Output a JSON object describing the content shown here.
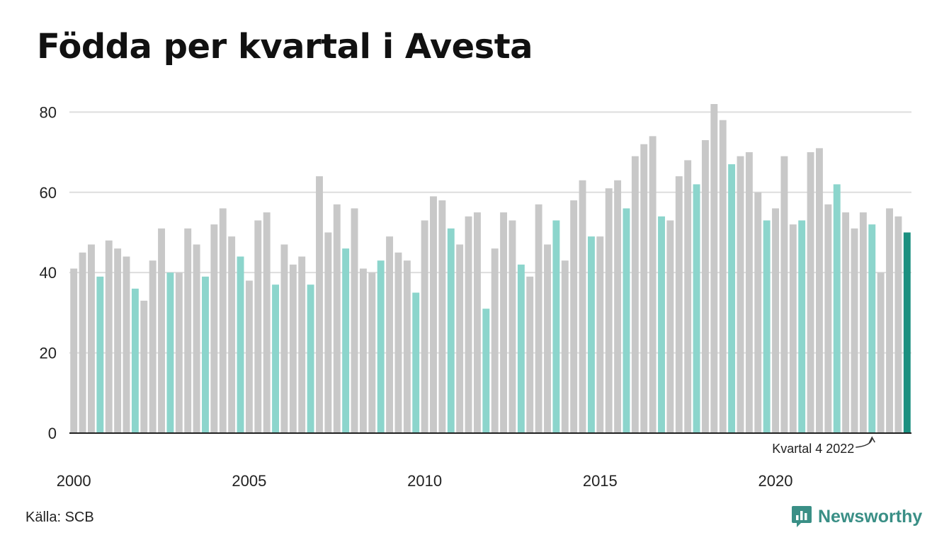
{
  "title": "Födda per kvartal i Avesta",
  "source": "Källa: SCB",
  "brand": "Newsworthy",
  "colors": {
    "other_quarter": "#c8c8c8",
    "q4_quarter": "#8cd5cc",
    "latest": "#1b9080",
    "grid": "#dddddd",
    "axis": "#222222"
  },
  "chart_data": {
    "type": "bar",
    "title": "Födda per kvartal i Avesta",
    "xlabel": "",
    "ylabel": "",
    "ylim": [
      0,
      85
    ],
    "yticks": [
      0,
      20,
      40,
      60,
      80
    ],
    "xtick_labels": [
      "2000",
      "2005",
      "2010",
      "2015",
      "2020"
    ],
    "annotation": "Kvartal 4 2022",
    "grid": true,
    "categories": [
      "2000 Q1",
      "2000 Q2",
      "2000 Q3",
      "2000 Q4",
      "2001 Q1",
      "2001 Q2",
      "2001 Q3",
      "2001 Q4",
      "2002 Q1",
      "2002 Q2",
      "2002 Q3",
      "2002 Q4",
      "2003 Q1",
      "2003 Q2",
      "2003 Q3",
      "2003 Q4",
      "2004 Q1",
      "2004 Q2",
      "2004 Q3",
      "2004 Q4",
      "2005 Q1",
      "2005 Q2",
      "2005 Q3",
      "2005 Q4",
      "2006 Q1",
      "2006 Q2",
      "2006 Q3",
      "2006 Q4",
      "2007 Q1",
      "2007 Q2",
      "2007 Q3",
      "2007 Q4",
      "2008 Q1",
      "2008 Q2",
      "2008 Q3",
      "2008 Q4",
      "2009 Q1",
      "2009 Q2",
      "2009 Q3",
      "2009 Q4",
      "2010 Q1",
      "2010 Q2",
      "2010 Q3",
      "2010 Q4",
      "2011 Q1",
      "2011 Q2",
      "2011 Q3",
      "2011 Q4",
      "2012 Q1",
      "2012 Q2",
      "2012 Q3",
      "2012 Q4",
      "2013 Q1",
      "2013 Q2",
      "2013 Q3",
      "2013 Q4",
      "2014 Q1",
      "2014 Q2",
      "2014 Q3",
      "2014 Q4",
      "2015 Q1",
      "2015 Q2",
      "2015 Q3",
      "2015 Q4",
      "2016 Q1",
      "2016 Q2",
      "2016 Q3",
      "2016 Q4",
      "2017 Q1",
      "2017 Q2",
      "2017 Q3",
      "2017 Q4",
      "2018 Q1",
      "2018 Q2",
      "2018 Q3",
      "2018 Q4",
      "2019 Q1",
      "2019 Q2",
      "2019 Q3",
      "2019 Q4",
      "2020 Q1",
      "2020 Q2",
      "2020 Q3",
      "2020 Q4",
      "2021 Q1",
      "2021 Q2",
      "2021 Q3",
      "2021 Q4",
      "2022 Q1",
      "2022 Q2",
      "2022 Q3",
      "2022 Q4",
      "2023 Q1",
      "2023 Q2",
      "2023 Q3",
      "2023 Q4"
    ],
    "values": [
      41,
      45,
      47,
      39,
      48,
      46,
      44,
      36,
      33,
      43,
      51,
      40,
      40,
      51,
      47,
      39,
      52,
      56,
      49,
      44,
      38,
      53,
      55,
      37,
      47,
      42,
      44,
      37,
      64,
      50,
      57,
      46,
      56,
      41,
      40,
      43,
      49,
      45,
      43,
      35,
      53,
      59,
      58,
      51,
      47,
      54,
      55,
      31,
      46,
      55,
      53,
      42,
      39,
      57,
      47,
      53,
      43,
      58,
      63,
      49,
      49,
      61,
      63,
      56,
      69,
      72,
      74,
      54,
      53,
      64,
      68,
      62,
      73,
      82,
      78,
      67,
      69,
      70,
      60,
      53,
      56,
      69,
      52,
      53,
      70,
      71,
      57,
      62,
      55,
      51,
      55,
      52,
      40,
      56,
      54,
      50
    ],
    "highlight": "Q4"
  }
}
